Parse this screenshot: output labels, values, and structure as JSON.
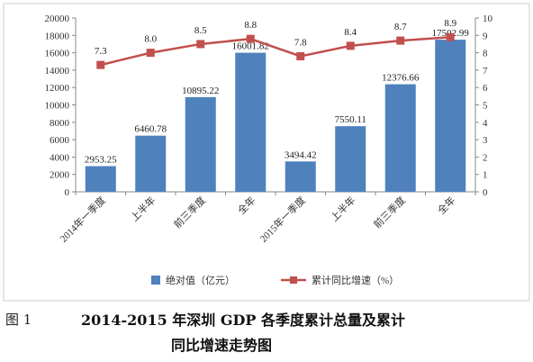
{
  "chart_data": {
    "type": "bar+line",
    "categories": [
      "2014年一季度",
      "上半年",
      "前三季度",
      "全年",
      "2015年一季度",
      "上半年",
      "前三季度",
      "全年"
    ],
    "series": [
      {
        "name": "绝对值（亿元）",
        "type": "bar",
        "axis": "left",
        "color": "#4F81BD",
        "values": [
          2953.25,
          6460.78,
          10895.22,
          16001.82,
          3494.42,
          7550.11,
          12376.66,
          17502.99
        ],
        "labels": [
          "2953.25",
          "6460.78",
          "10895.22",
          "16001.82",
          "3494.42",
          "7550.11",
          "12376.66",
          "17502.99"
        ]
      },
      {
        "name": "累计同比增速（%）",
        "type": "line",
        "axis": "right",
        "color": "#C0504D",
        "values": [
          7.3,
          8.0,
          8.5,
          8.8,
          7.8,
          8.4,
          8.7,
          8.9
        ],
        "labels": [
          "7.3",
          "8.0",
          "8.5",
          "8.8",
          "7.8",
          "8.4",
          "8.7",
          "8.9"
        ]
      }
    ],
    "ylim_left": [
      0,
      20000
    ],
    "yticks_left": [
      "0",
      "2000",
      "4000",
      "6000",
      "8000",
      "10000",
      "12000",
      "14000",
      "16000",
      "18000",
      "20000"
    ],
    "ylim_right": [
      0,
      10
    ],
    "yticks_right": [
      "0",
      "1",
      "2",
      "3",
      "4",
      "5",
      "6",
      "7",
      "8",
      "9",
      "10"
    ],
    "legend_position": "bottom",
    "grid": false
  },
  "caption": {
    "number": "图 1",
    "line1": "2014-2015 年深圳 GDP 各季度累计总量及累计",
    "line2": "同比增速走势图"
  }
}
